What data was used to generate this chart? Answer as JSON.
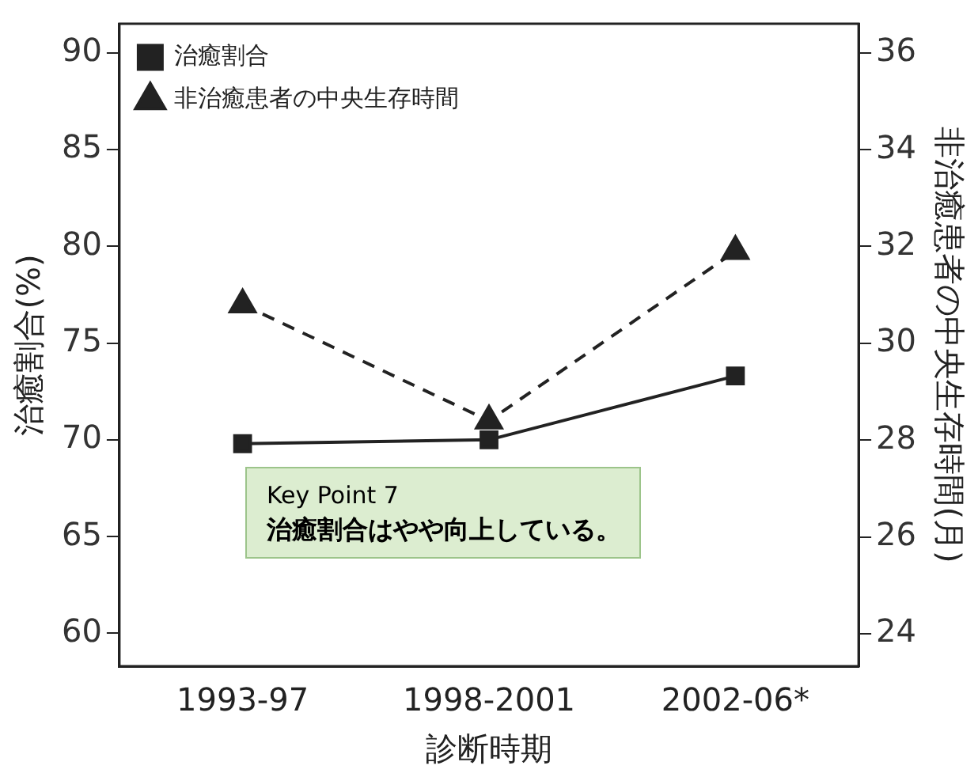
{
  "chart_data": {
    "type": "line",
    "xlabel": "診断時期",
    "ylabel": "治癒割合(%)",
    "y2label": "非治癒患者の中央生存時間(月)",
    "categories": [
      "1993-97",
      "1998-2001",
      "2002-06*"
    ],
    "series": [
      {
        "name": "治癒割合",
        "color": "#222222",
        "values": [
          69.8,
          70.0,
          73.3
        ],
        "marker": "square",
        "line_style": "solid"
      },
      {
        "name": "非治癒患者の中央生存時間",
        "color": "#222222",
        "values": [
          30.8,
          28.4,
          31.9
        ],
        "marker": "triangle",
        "line_style": "dashed",
        "axis": "y2"
      }
    ],
    "ylim": [
      58.3,
      91.5
    ],
    "yticks": [
      60,
      65,
      70,
      75,
      80,
      85,
      90
    ],
    "y2lim": [
      23.33,
      36.6
    ],
    "y2ticks": [
      24,
      26,
      28,
      30,
      32,
      34,
      36
    ],
    "grid": false,
    "legend": "top left",
    "annotations": [
      "Key Point 7",
      "治癒割合はやや向上している。"
    ]
  }
}
